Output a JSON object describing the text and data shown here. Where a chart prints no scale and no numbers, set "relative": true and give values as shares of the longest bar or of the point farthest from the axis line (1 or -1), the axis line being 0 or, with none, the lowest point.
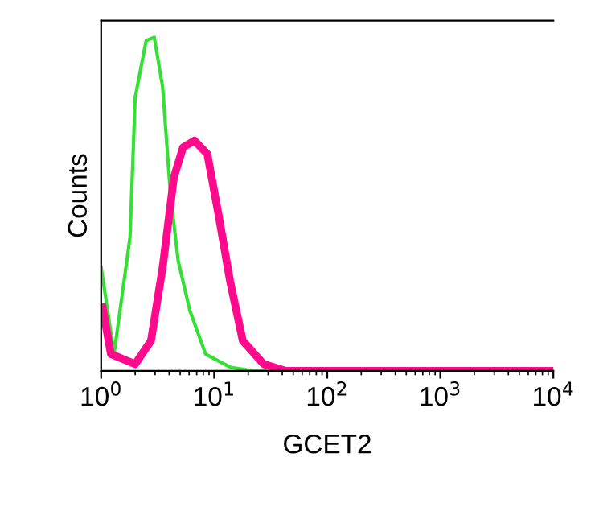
{
  "chart_data": {
    "type": "line",
    "relative": true,
    "xlabel": "GCET2",
    "ylabel": "Counts",
    "log": "x",
    "grid": false,
    "marker": "none",
    "line_style": "solid",
    "xlim": [
      1,
      10000
    ],
    "xticks": [
      {
        "value": 1,
        "label": "10$^{0}$"
      },
      {
        "value": 10,
        "label": "10$^{1}$"
      },
      {
        "value": 100,
        "label": "10$^{2}$"
      },
      {
        "value": 1000,
        "label": "10$^{3}$"
      },
      {
        "value": 10000,
        "label": "10$^{4}$"
      }
    ],
    "series": [
      {
        "color": "#33e033",
        "x": [
          1,
          1.3,
          1.8,
          2.0,
          2.5,
          2.95,
          3.5,
          4.1,
          4.8,
          6.1,
          8.4,
          14,
          22,
          10000
        ],
        "values": [
          0.31,
          0.05,
          0.4,
          0.82,
          0.99,
          1.0,
          0.85,
          0.53,
          0.33,
          0.18,
          0.05,
          0.01,
          0,
          0
        ]
      },
      {
        "color": "#ff0a8c",
        "x": [
          1.03,
          1.22,
          2.0,
          2.76,
          3.5,
          4.4,
          5.3,
          6.7,
          8.7,
          10.9,
          13.8,
          17.9,
          27.4,
          43,
          10000
        ],
        "values": [
          0.19,
          0.05,
          0.02,
          0.09,
          0.31,
          0.58,
          0.67,
          0.69,
          0.65,
          0.47,
          0.27,
          0.09,
          0.02,
          0,
          0
        ]
      }
    ]
  }
}
